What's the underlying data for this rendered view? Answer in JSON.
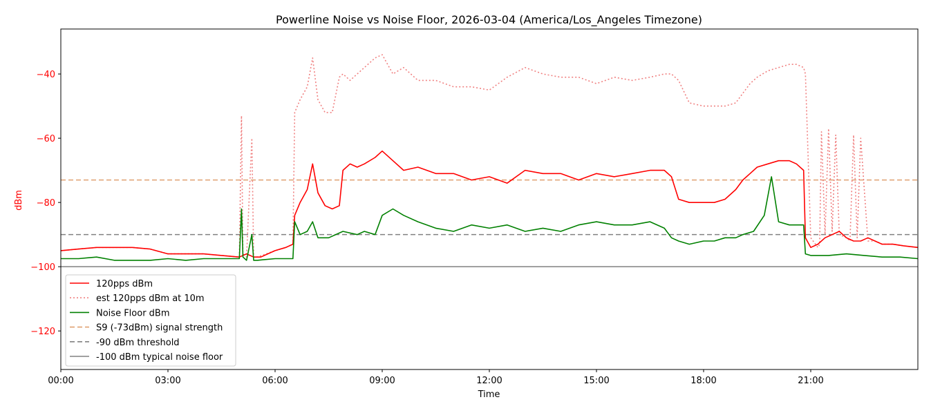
{
  "chart_data": {
    "type": "line",
    "title": "Powerline Noise vs Noise Floor, 2026-03-04 (America/Los_Angeles Timezone)",
    "xlabel": "Time",
    "ylabel": "dBm",
    "xlim_hours": [
      0,
      24
    ],
    "ylim": [
      -132,
      -26
    ],
    "x_ticks": [
      "00:00",
      "03:00",
      "06:00",
      "09:00",
      "12:00",
      "15:00",
      "18:00",
      "21:00"
    ],
    "x_tick_hours": [
      0,
      3,
      6,
      9,
      12,
      15,
      18,
      21
    ],
    "y_ticks": [
      -120,
      -100,
      -80,
      -60,
      -40
    ],
    "y_tick_labels": [
      "−120",
      "−100",
      "−80",
      "−60",
      "−40"
    ],
    "legend_position": "lower-left",
    "grid": false,
    "series": [
      {
        "name": "120pps dBm",
        "color": "#ff0000",
        "style": "solid",
        "x": [
          0,
          0.5,
          1,
          1.5,
          2,
          2.5,
          3,
          3.5,
          4,
          4.5,
          5,
          5.2,
          5.4,
          5.6,
          6,
          6.3,
          6.5,
          6.55,
          6.7,
          6.9,
          7.05,
          7.2,
          7.4,
          7.6,
          7.8,
          7.9,
          8.1,
          8.3,
          8.5,
          8.8,
          9.0,
          9.3,
          9.6,
          10,
          10.5,
          11,
          11.5,
          12,
          12.5,
          13,
          13.5,
          14,
          14.5,
          15,
          15.5,
          16,
          16.5,
          16.9,
          17.1,
          17.3,
          17.6,
          18,
          18.3,
          18.6,
          18.9,
          19.1,
          19.3,
          19.5,
          19.8,
          20.1,
          20.4,
          20.6,
          20.8,
          20.85,
          21.0,
          21.2,
          21.4,
          21.6,
          21.8,
          22.0,
          22.2,
          22.4,
          22.6,
          22.8,
          23.0,
          23.3,
          23.6,
          24
        ],
        "y": [
          -95,
          -94.5,
          -94,
          -94,
          -94,
          -94.5,
          -96,
          -96,
          -96,
          -96.5,
          -97,
          -96,
          -97,
          -97,
          -95,
          -94,
          -93,
          -84,
          -80,
          -76,
          -68,
          -77,
          -81,
          -82,
          -81,
          -70,
          -68,
          -69,
          -68,
          -66,
          -64,
          -67,
          -70,
          -69,
          -71,
          -71,
          -73,
          -72,
          -74,
          -70,
          -71,
          -71,
          -73,
          -71,
          -72,
          -71,
          -70,
          -70,
          -72,
          -79,
          -80,
          -80,
          -80,
          -79,
          -76,
          -73,
          -71,
          -69,
          -68,
          -67,
          -67,
          -68,
          -70,
          -91,
          -94,
          -93,
          -91,
          -90,
          -89,
          -91,
          -92,
          -92,
          -91,
          -92,
          -93,
          -93,
          -93.5,
          -94
        ]
      },
      {
        "name": "est 120pps dBm at 10m",
        "color": "#f08080",
        "style": "dotted",
        "x": [
          0,
          0.5,
          1,
          1.5,
          2,
          2.5,
          3,
          3.5,
          4,
          4.5,
          5,
          5.06,
          5.1,
          5.2,
          5.35,
          5.4,
          5.5,
          6,
          6.3,
          6.5,
          6.55,
          6.7,
          6.9,
          7.05,
          7.2,
          7.4,
          7.6,
          7.8,
          7.9,
          8.1,
          8.3,
          8.5,
          8.8,
          9.0,
          9.3,
          9.6,
          10,
          10.5,
          11,
          11.5,
          12,
          12.5,
          13,
          13.5,
          14,
          14.5,
          15,
          15.5,
          16,
          16.5,
          16.9,
          17.1,
          17.3,
          17.6,
          18,
          18.3,
          18.6,
          18.9,
          19.1,
          19.3,
          19.5,
          19.8,
          20.1,
          20.4,
          20.6,
          20.8,
          20.85,
          21.0,
          21.2,
          21.25,
          21.3,
          21.4,
          21.5,
          21.6,
          21.7,
          21.8,
          22.0,
          22.1,
          22.2,
          22.3,
          22.4,
          22.6,
          22.8,
          23.0,
          23.3,
          23.6,
          24
        ],
        "y": [
          -95,
          -94.5,
          -94,
          -94,
          -94,
          -94.5,
          -96,
          -96,
          -96,
          -96.5,
          -97,
          -53,
          -96,
          -97,
          -60,
          -97,
          -97,
          -95,
          -94,
          -93,
          -52,
          -48,
          -44,
          -35,
          -48,
          -52,
          -52,
          -41,
          -40,
          -42,
          -40,
          -38,
          -35,
          -34,
          -40,
          -38,
          -42,
          -42,
          -44,
          -44,
          -45,
          -41,
          -38,
          -40,
          -41,
          -41,
          -43,
          -41,
          -42,
          -41,
          -40,
          -40,
          -42,
          -49,
          -50,
          -50,
          -50,
          -49,
          -46,
          -43,
          -41,
          -39,
          -38,
          -37,
          -37,
          -38,
          -40,
          -91,
          -94,
          -93,
          -58,
          -90,
          -57,
          -89,
          -59,
          -90,
          -91,
          -92,
          -59,
          -91,
          -60,
          -92,
          -92,
          -93,
          -93,
          -93.5,
          -94
        ]
      },
      {
        "name": "Noise Floor dBm",
        "color": "#008000",
        "style": "solid",
        "x": [
          0,
          0.5,
          1,
          1.5,
          2,
          2.5,
          3,
          3.5,
          4,
          4.5,
          5,
          5.06,
          5.1,
          5.2,
          5.35,
          5.4,
          5.5,
          6,
          6.3,
          6.5,
          6.55,
          6.7,
          6.9,
          7.05,
          7.2,
          7.5,
          7.9,
          8.3,
          8.5,
          8.8,
          9.0,
          9.3,
          9.6,
          10,
          10.5,
          11,
          11.5,
          12,
          12.5,
          13,
          13.5,
          14,
          14.5,
          15,
          15.5,
          16,
          16.5,
          16.9,
          17.1,
          17.3,
          17.6,
          18,
          18.3,
          18.6,
          18.9,
          19.1,
          19.4,
          19.7,
          19.9,
          20.1,
          20.4,
          20.6,
          20.8,
          20.85,
          21.0,
          21.5,
          22,
          22.5,
          23,
          23.5,
          24
        ],
        "y": [
          -97.5,
          -97.5,
          -97,
          -98,
          -98,
          -98,
          -97.5,
          -98,
          -97.5,
          -97.5,
          -97.5,
          -82,
          -97,
          -98,
          -90,
          -98,
          -98,
          -97.5,
          -97.5,
          -97.5,
          -86,
          -90,
          -89,
          -86,
          -91,
          -91,
          -89,
          -90,
          -89,
          -90,
          -84,
          -82,
          -84,
          -86,
          -88,
          -89,
          -87,
          -88,
          -87,
          -89,
          -88,
          -89,
          -87,
          -86,
          -87,
          -87,
          -86,
          -88,
          -91,
          -92,
          -93,
          -92,
          -92,
          -91,
          -91,
          -90,
          -89,
          -84,
          -72,
          -86,
          -87,
          -87,
          -87,
          -96,
          -96.5,
          -96.5,
          -96,
          -96.5,
          -97,
          -97,
          -97.5
        ]
      }
    ],
    "reference_lines": [
      {
        "name": "S9 (-73dBm) signal strength",
        "value": -73,
        "color": "#e0a070",
        "style": "dashed"
      },
      {
        "name": "-90 dBm threshold",
        "value": -90,
        "color": "#808080",
        "style": "dashed"
      },
      {
        "name": "-100 dBm typical noise floor",
        "value": -100,
        "color": "#808080",
        "style": "solid"
      }
    ]
  }
}
